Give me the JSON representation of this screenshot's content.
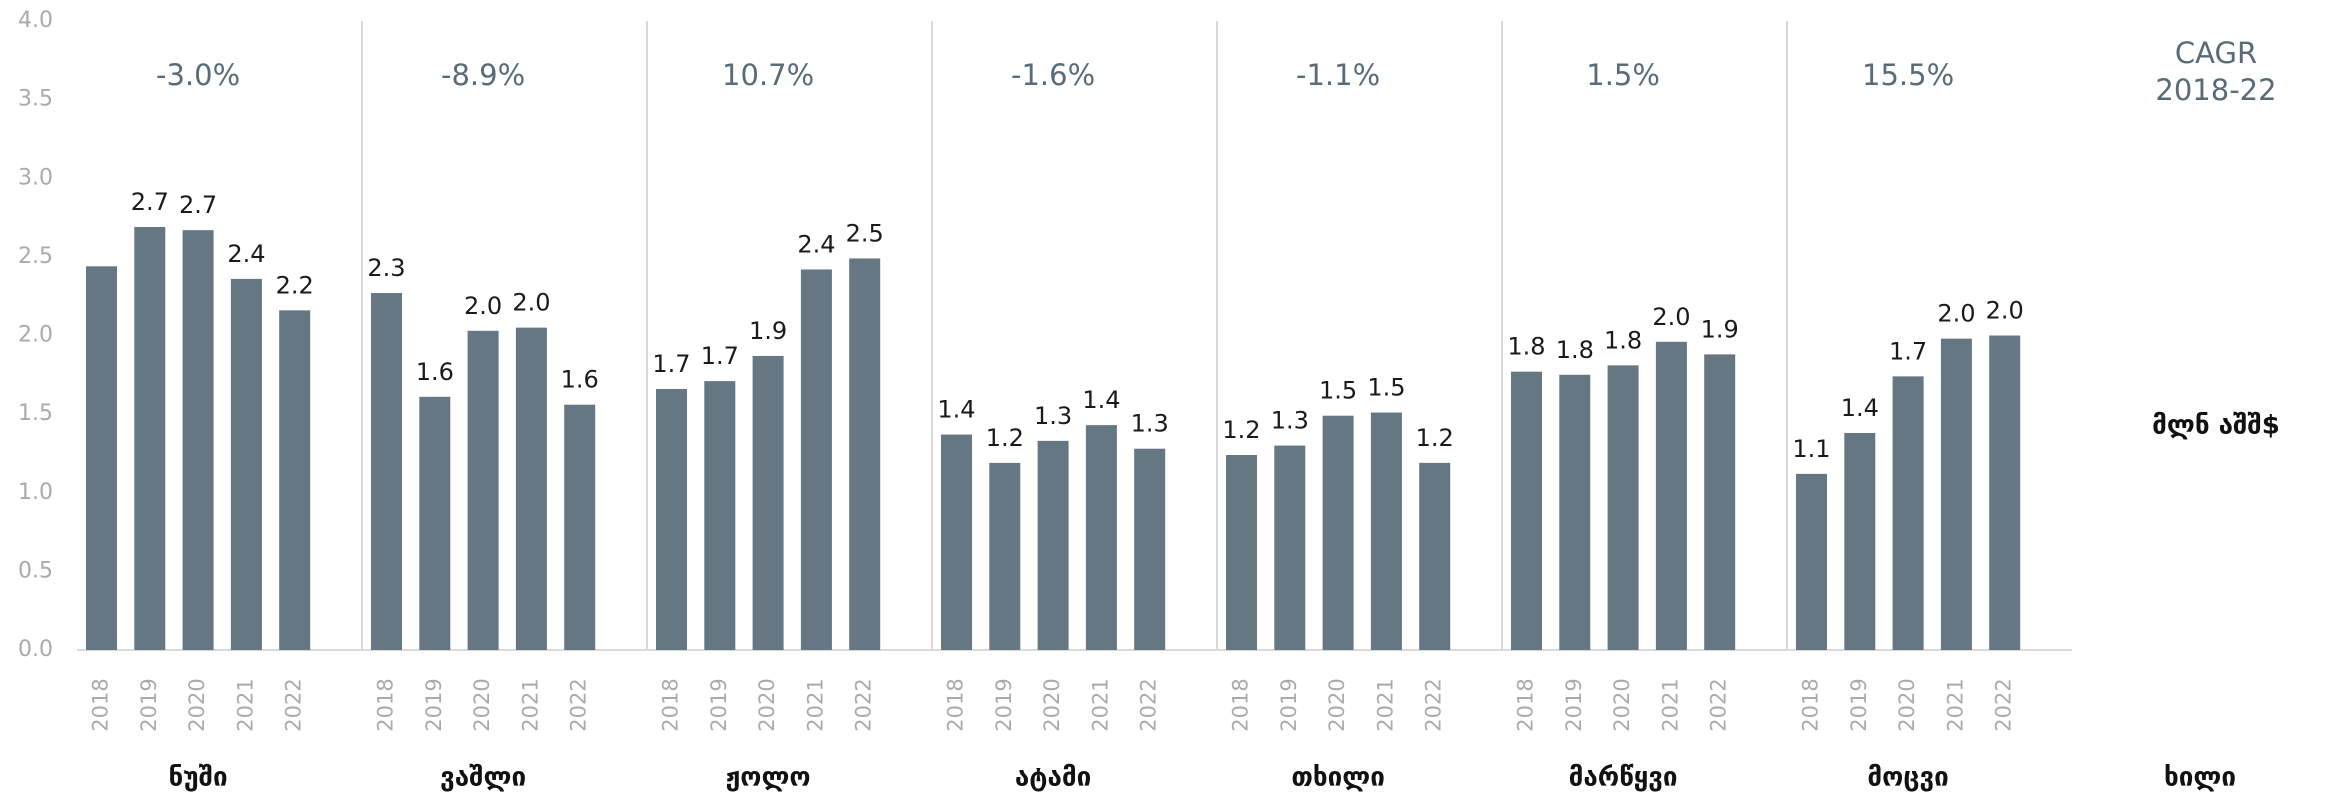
{
  "chart_data": {
    "type": "bar",
    "categories": [
      "2018",
      "2019",
      "2020",
      "2021",
      "2022"
    ],
    "groups": [
      {
        "name": "ნუში",
        "cagr": "-3.0%",
        "values": [
          2.44,
          2.69,
          2.67,
          2.36,
          2.16
        ],
        "value_labels": [
          null,
          "2.7",
          "2.7",
          "2.4",
          "2.2"
        ]
      },
      {
        "name": "ვაშლი",
        "cagr": "-8.9%",
        "values": [
          2.27,
          1.61,
          2.03,
          2.05,
          1.56
        ],
        "value_labels": [
          "2.3",
          "1.6",
          "2.0",
          "2.0",
          "1.6"
        ]
      },
      {
        "name": "ჟოლო",
        "cagr": "10.7%",
        "values": [
          1.66,
          1.71,
          1.87,
          2.42,
          2.49
        ],
        "value_labels": [
          "1.7",
          "1.7",
          "1.9",
          "2.4",
          "2.5"
        ]
      },
      {
        "name": "ატამი",
        "cagr": "-1.6%",
        "values": [
          1.37,
          1.19,
          1.33,
          1.43,
          1.28
        ],
        "value_labels": [
          "1.4",
          "1.2",
          "1.3",
          "1.4",
          "1.3"
        ]
      },
      {
        "name": "თხილი",
        "cagr": "-1.1%",
        "values": [
          1.24,
          1.3,
          1.49,
          1.51,
          1.19
        ],
        "value_labels": [
          "1.2",
          "1.3",
          "1.5",
          "1.5",
          "1.2"
        ]
      },
      {
        "name": "მარწყვი",
        "cagr": "1.5%",
        "values": [
          1.77,
          1.75,
          1.81,
          1.96,
          1.88
        ],
        "value_labels": [
          "1.8",
          "1.8",
          "1.8",
          "2.0",
          "1.9"
        ]
      },
      {
        "name": "მოცვი",
        "cagr": "15.5%",
        "values": [
          1.12,
          1.38,
          1.74,
          1.98,
          2.0
        ],
        "value_labels": [
          "1.1",
          "1.4",
          "1.7",
          "2.0",
          "2.0"
        ]
      }
    ],
    "color": "#647782",
    "cagr_title": [
      "CAGR",
      "2018-22"
    ],
    "y_axis_label": "მლნ აშშ$",
    "x_axis_label": "ხილი",
    "ylim": [
      0,
      4
    ],
    "yticks": [
      {
        "value": 0,
        "label": "0.0"
      },
      0.5,
      {
        "value": 1,
        "label": "1.0"
      },
      1.5,
      {
        "value": 2,
        "label": "2.0"
      },
      2.5,
      {
        "value": 3,
        "label": "3.0"
      },
      3.5,
      {
        "value": 4,
        "label": "4.0"
      }
    ]
  }
}
